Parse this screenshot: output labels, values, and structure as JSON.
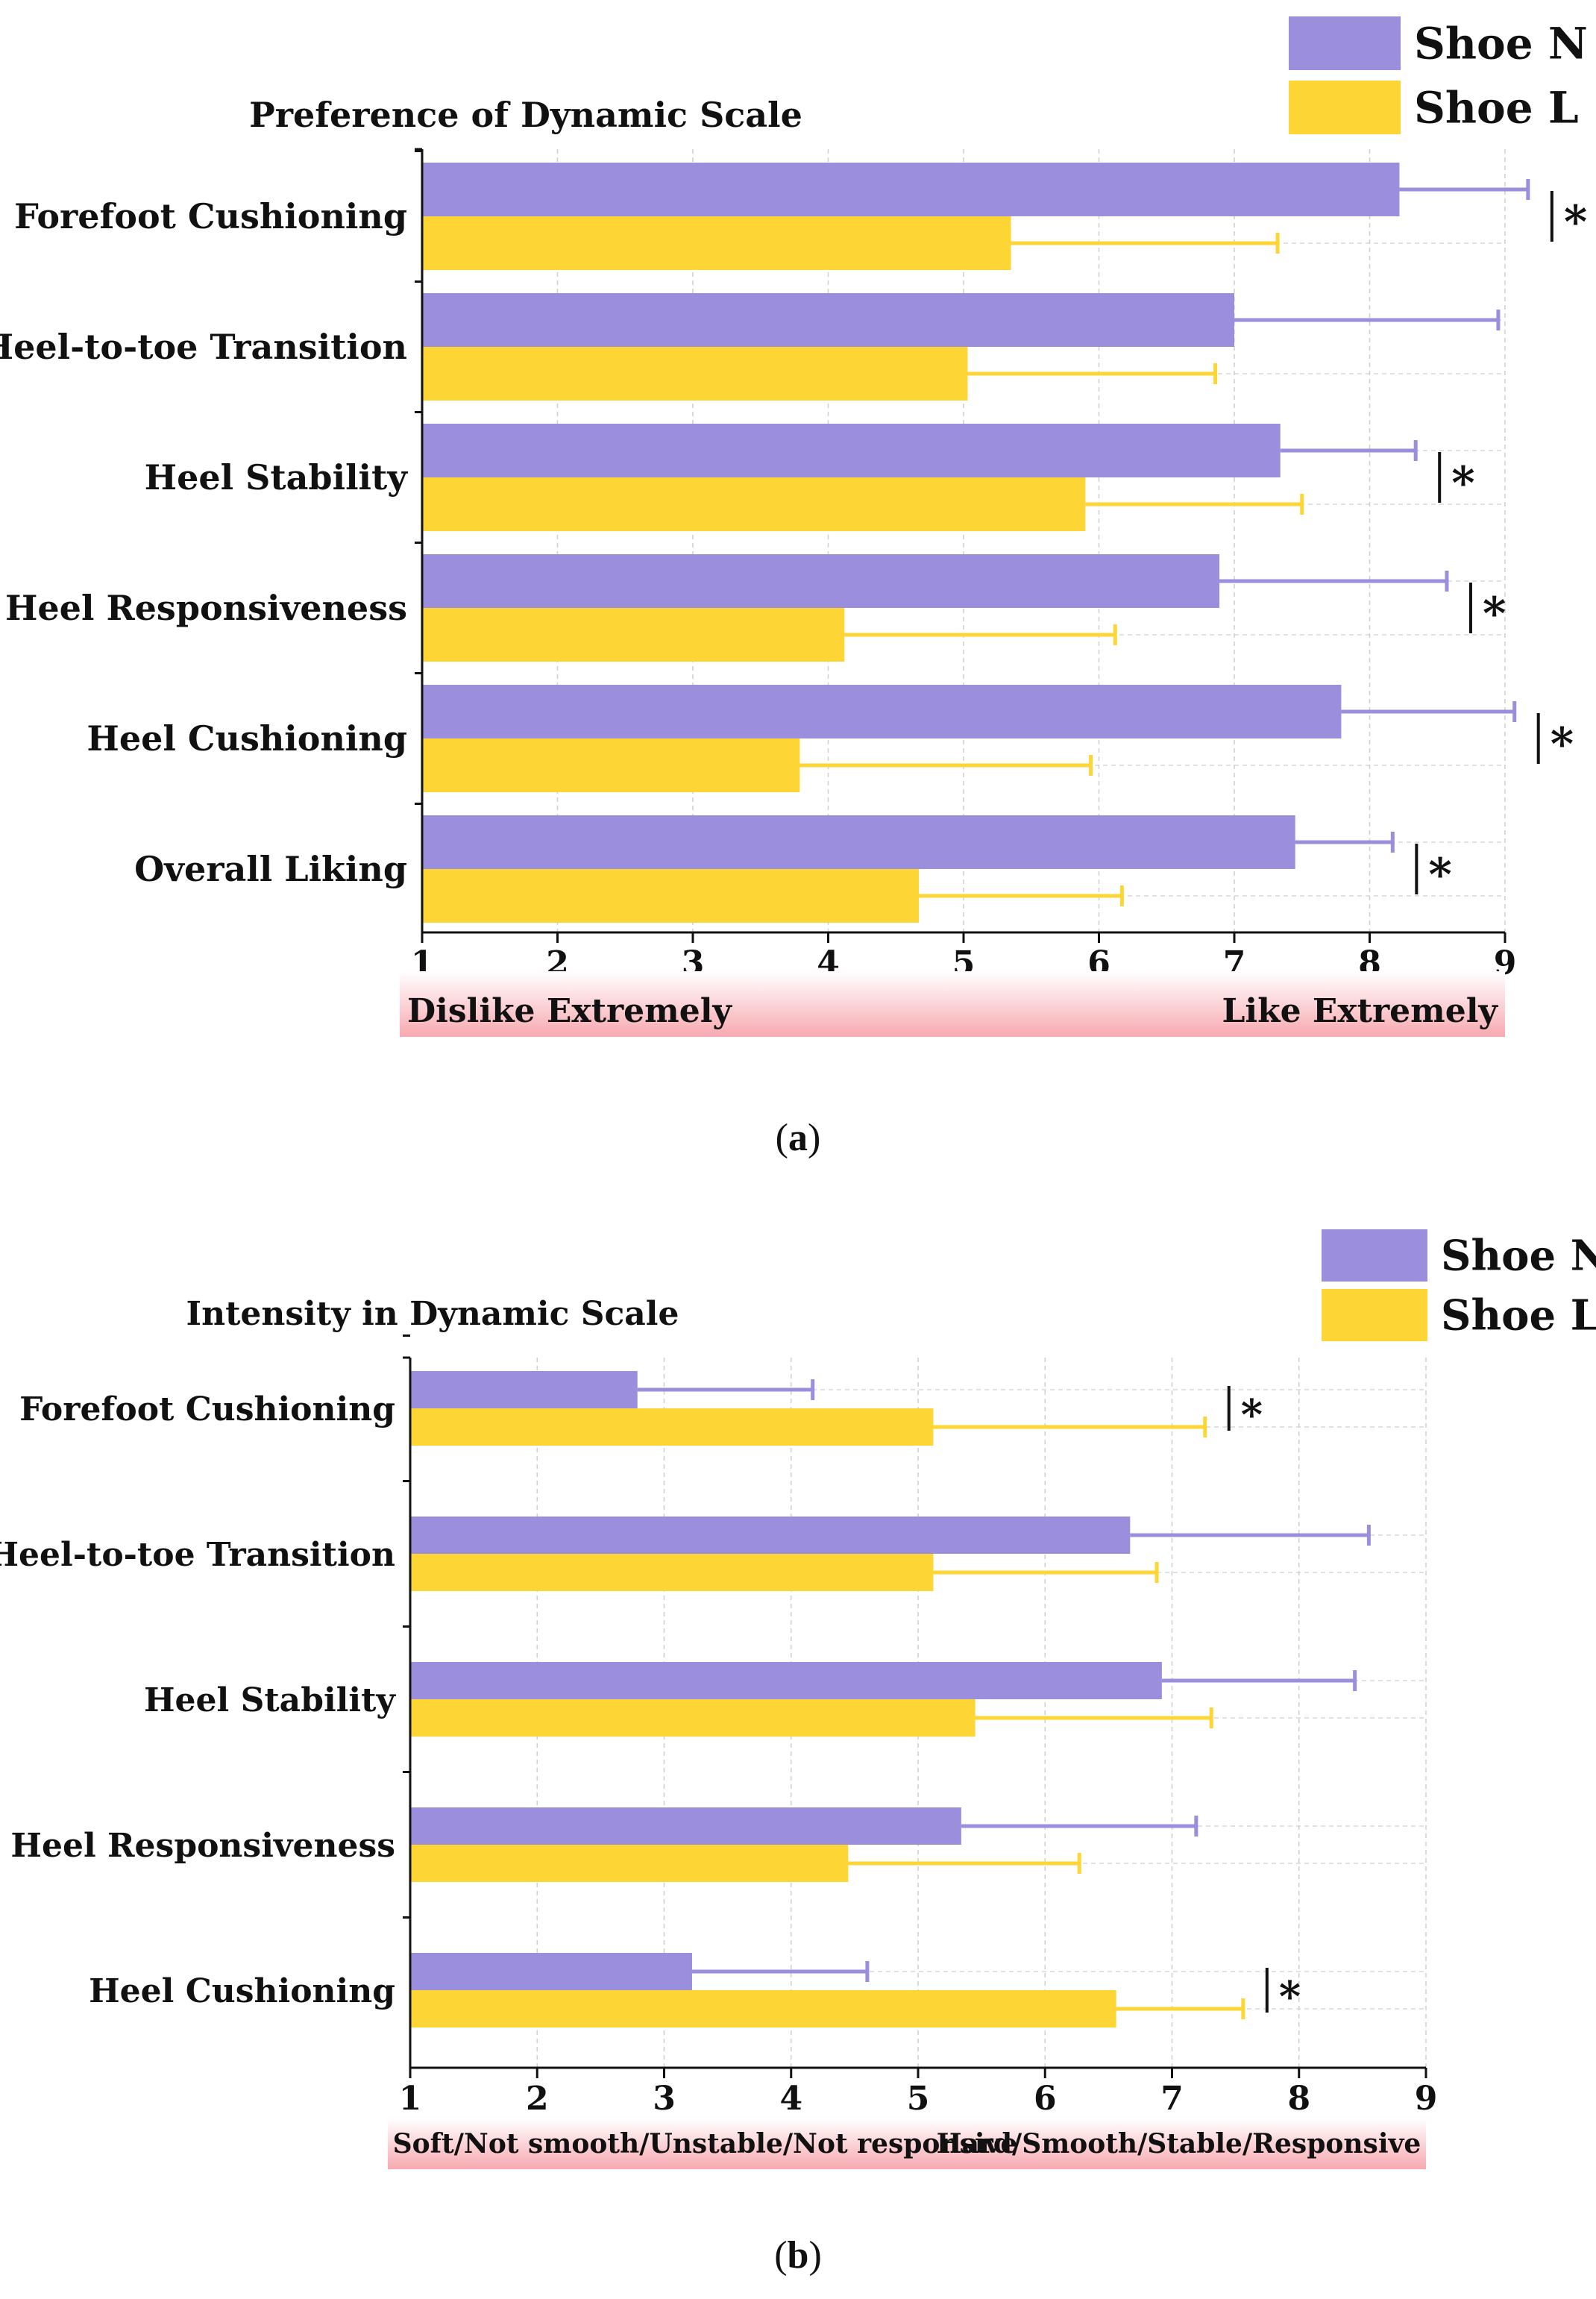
{
  "colors": {
    "shoe_n": "#9B8EDC",
    "shoe_l": "#FDD535",
    "axis": "#111111",
    "grid": "#CFCFCF",
    "scale_band_center": "#FFFFFF",
    "scale_band_edge": "#F7A9B0"
  },
  "legend": [
    "Shoe N",
    "Shoe L"
  ],
  "chart_data": [
    {
      "type": "bar",
      "orientation": "horizontal",
      "panel_label": "a",
      "title": "Preference of Dynamic Scale",
      "categories": [
        "Forefoot Cushioning",
        "Heel-to-toe Transition",
        "Heel Stability",
        "Heel Responsiveness",
        "Heel Cushioning",
        "Overall Liking"
      ],
      "series": [
        {
          "name": "Shoe N",
          "values": [
            8.22,
            7.0,
            7.34,
            6.89,
            7.79,
            7.45
          ],
          "error": [
            0.95,
            1.95,
            1.0,
            1.68,
            1.28,
            0.72
          ]
        },
        {
          "name": "Shoe L",
          "values": [
            5.35,
            5.03,
            5.9,
            4.12,
            3.79,
            4.67
          ],
          "error": [
            1.97,
            1.83,
            1.6,
            2.0,
            2.15,
            1.5
          ]
        }
      ],
      "significance": [
        true,
        false,
        true,
        true,
        true,
        true
      ],
      "significance_marker": "*",
      "xlim": [
        1,
        9
      ],
      "xticks": [
        "1",
        "2",
        "3",
        "4",
        "5",
        "6",
        "7",
        "8",
        "9"
      ],
      "scale_low_label": "Dislike Extremely",
      "scale_high_label": "Like Extremely",
      "grid": true,
      "legend_position": "top-right"
    },
    {
      "type": "bar",
      "orientation": "horizontal",
      "panel_label": "b",
      "title": "Intensity in Dynamic Scale",
      "categories": [
        "Forefoot Cushioning",
        "Heel-to-toe Transition",
        "Heel Stability",
        "Heel Responsiveness",
        "Heel Cushioning"
      ],
      "series": [
        {
          "name": "Shoe N",
          "values": [
            2.79,
            6.67,
            6.92,
            5.34,
            3.22
          ],
          "error": [
            1.38,
            1.88,
            1.52,
            1.85,
            1.38
          ]
        },
        {
          "name": "Shoe L",
          "values": [
            5.12,
            5.12,
            5.45,
            4.45,
            6.56
          ],
          "error": [
            2.14,
            1.76,
            1.86,
            1.82,
            1.0
          ]
        }
      ],
      "significance": [
        true,
        false,
        false,
        false,
        true
      ],
      "significance_marker": "*",
      "xlim": [
        1,
        9
      ],
      "xticks": [
        "1",
        "2",
        "3",
        "4",
        "5",
        "6",
        "7",
        "8",
        "9"
      ],
      "scale_low_label": "Soft/Not smooth/Unstable/Not responsive",
      "scale_high_label": "Hard/Smooth/Stable/Responsive",
      "grid": true,
      "legend_position": "top-right"
    }
  ]
}
